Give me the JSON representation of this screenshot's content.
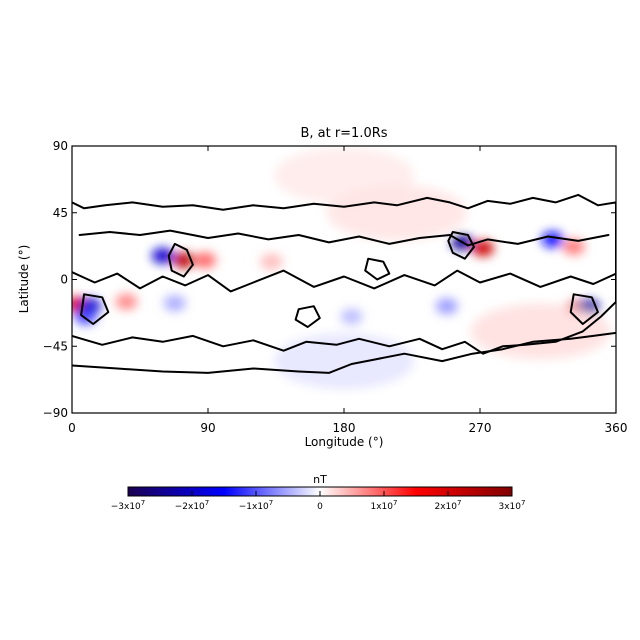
{
  "chart_data": {
    "type": "heatmap",
    "title": "B, at r=1.0Rs",
    "xlabel": "Longitude (°)",
    "ylabel": "Latitude (°)",
    "xlim": [
      0,
      360
    ],
    "ylim": [
      -90,
      90
    ],
    "x_ticks": [
      {
        "value": 0,
        "label": "0"
      },
      {
        "value": 90,
        "label": "90"
      },
      {
        "value": 180,
        "label": "180"
      },
      {
        "value": 270,
        "label": "270"
      },
      {
        "value": 360,
        "label": "360"
      }
    ],
    "y_ticks": [
      {
        "value": 90,
        "label": "90"
      },
      {
        "value": 45,
        "label": "45"
      },
      {
        "value": 0,
        "label": "0"
      },
      {
        "value": -45,
        "label": "−45"
      },
      {
        "value": -90,
        "label": "−90"
      }
    ],
    "colorbar": {
      "label": "nT",
      "range": [
        -30000000,
        30000000
      ],
      "colors": [
        "#1a0050",
        "#0000ff",
        "#ffffff",
        "#ff0000",
        "#800000"
      ],
      "ticks": [
        {
          "value": -30000000,
          "mantissa": "−3x10",
          "exponent": "7"
        },
        {
          "value": -20000000,
          "mantissa": "−2x10",
          "exponent": "7"
        },
        {
          "value": -10000000,
          "mantissa": "−1x10",
          "exponent": "7"
        },
        {
          "value": 0,
          "mantissa": "0",
          "exponent": ""
        },
        {
          "value": 10000000,
          "mantissa": "1x10",
          "exponent": "7"
        },
        {
          "value": 20000000,
          "mantissa": "2x10",
          "exponent": "7"
        },
        {
          "value": 30000000,
          "mantissa": "3x10",
          "exponent": "7"
        }
      ]
    },
    "field_features": [
      {
        "lon": 60,
        "lat": 16,
        "value": -19000000
      },
      {
        "lon": 74,
        "lat": 13,
        "value": 23000000
      },
      {
        "lon": 88,
        "lat": 13,
        "value": 9000000
      },
      {
        "lon": 132,
        "lat": 12,
        "value": 4000000
      },
      {
        "lon": 258,
        "lat": 25,
        "value": -24000000
      },
      {
        "lon": 272,
        "lat": 21,
        "value": 21000000
      },
      {
        "lon": 318,
        "lat": 27,
        "value": -14000000
      },
      {
        "lon": 332,
        "lat": 22,
        "value": 8000000
      },
      {
        "lon": 3,
        "lat": -17,
        "value": 19000000
      },
      {
        "lon": 12,
        "lat": -18,
        "value": -19000000
      },
      {
        "lon": 9,
        "lat": -25,
        "value": -11000000
      },
      {
        "lon": 36,
        "lat": -15,
        "value": 7000000
      },
      {
        "lon": 68,
        "lat": -16,
        "value": -5000000
      },
      {
        "lon": 333,
        "lat": -20,
        "value": 19000000
      },
      {
        "lon": 342,
        "lat": -19,
        "value": -23000000
      },
      {
        "lon": 248,
        "lat": -18,
        "value": -6000000
      },
      {
        "lon": 185,
        "lat": -25,
        "value": -4000000
      },
      {
        "lon": 180,
        "lat": 70,
        "value": 1200000
      },
      {
        "lon": 180,
        "lat": -55,
        "value": -1500000
      },
      {
        "lon": 310,
        "lat": -35,
        "value": 1800000
      },
      {
        "lon": 215,
        "lat": 45,
        "value": 1600000
      }
    ],
    "contours": [
      {
        "name": "zero-contour-outer",
        "level": 0,
        "points": [
          [
            0,
            52
          ],
          [
            8,
            48
          ],
          [
            22,
            50
          ],
          [
            40,
            52
          ],
          [
            60,
            49
          ],
          [
            80,
            50
          ],
          [
            100,
            47
          ],
          [
            120,
            50
          ],
          [
            140,
            48
          ],
          [
            160,
            51
          ],
          [
            180,
            49
          ],
          [
            200,
            52
          ],
          [
            215,
            50
          ],
          [
            235,
            55
          ],
          [
            250,
            52
          ],
          [
            262,
            48
          ],
          [
            275,
            53
          ],
          [
            290,
            51
          ],
          [
            305,
            55
          ],
          [
            320,
            52
          ],
          [
            335,
            57
          ],
          [
            348,
            50
          ],
          [
            360,
            52
          ],
          [
            360,
            -15
          ],
          [
            350,
            -25
          ],
          [
            338,
            -35
          ],
          [
            320,
            -42
          ],
          [
            300,
            -44
          ],
          [
            285,
            -45
          ],
          [
            272,
            -50
          ],
          [
            260,
            -42
          ],
          [
            245,
            -47
          ],
          [
            230,
            -40
          ],
          [
            210,
            -45
          ],
          [
            190,
            -40
          ],
          [
            175,
            -44
          ],
          [
            155,
            -42
          ],
          [
            140,
            -48
          ],
          [
            120,
            -41
          ],
          [
            100,
            -45
          ],
          [
            80,
            -38
          ],
          [
            60,
            -42
          ],
          [
            40,
            -39
          ],
          [
            20,
            -44
          ],
          [
            0,
            -38
          ]
        ]
      },
      {
        "name": "zero-contour-south",
        "level": 0,
        "points": [
          [
            0,
            -58
          ],
          [
            30,
            -60
          ],
          [
            60,
            -62
          ],
          [
            90,
            -63
          ],
          [
            120,
            -60
          ],
          [
            150,
            -62
          ],
          [
            170,
            -63
          ],
          [
            185,
            -57
          ],
          [
            200,
            -54
          ],
          [
            220,
            -50
          ],
          [
            245,
            -55
          ],
          [
            265,
            -50
          ],
          [
            285,
            -47
          ],
          [
            305,
            -42
          ],
          [
            330,
            -40
          ],
          [
            345,
            -38
          ],
          [
            360,
            -36
          ]
        ]
      },
      {
        "name": "zero-contour-inner-north",
        "level": 0,
        "points": [
          [
            5,
            30
          ],
          [
            25,
            32
          ],
          [
            45,
            30
          ],
          [
            65,
            33
          ],
          [
            90,
            28
          ],
          [
            110,
            31
          ],
          [
            130,
            27
          ],
          [
            150,
            30
          ],
          [
            170,
            25
          ],
          [
            190,
            29
          ],
          [
            210,
            24
          ],
          [
            230,
            28
          ],
          [
            250,
            30
          ],
          [
            262,
            23
          ],
          [
            275,
            27
          ],
          [
            295,
            24
          ],
          [
            315,
            29
          ],
          [
            335,
            26
          ],
          [
            355,
            30
          ]
        ]
      },
      {
        "name": "zero-contour-inner-equator",
        "level": 0,
        "points": [
          [
            0,
            5
          ],
          [
            15,
            -2
          ],
          [
            30,
            4
          ],
          [
            45,
            -6
          ],
          [
            60,
            2
          ],
          [
            75,
            -4
          ],
          [
            90,
            3
          ],
          [
            105,
            -8
          ],
          [
            120,
            -2
          ],
          [
            140,
            6
          ],
          [
            160,
            -5
          ],
          [
            180,
            2
          ],
          [
            200,
            -6
          ],
          [
            220,
            3
          ],
          [
            240,
            -4
          ],
          [
            255,
            6
          ],
          [
            270,
            -2
          ],
          [
            290,
            4
          ],
          [
            310,
            -5
          ],
          [
            330,
            2
          ],
          [
            345,
            -3
          ],
          [
            360,
            4
          ]
        ]
      },
      {
        "name": "closed-contour-a",
        "level": 0,
        "closed": true,
        "points": [
          [
            68,
            24
          ],
          [
            76,
            20
          ],
          [
            80,
            10
          ],
          [
            74,
            2
          ],
          [
            66,
            6
          ],
          [
            64,
            16
          ]
        ]
      },
      {
        "name": "closed-contour-b",
        "level": 0,
        "closed": true,
        "points": [
          [
            252,
            32
          ],
          [
            262,
            30
          ],
          [
            266,
            22
          ],
          [
            260,
            14
          ],
          [
            252,
            18
          ],
          [
            249,
            26
          ]
        ]
      },
      {
        "name": "closed-contour-c",
        "level": 0,
        "closed": true,
        "points": [
          [
            8,
            -10
          ],
          [
            20,
            -12
          ],
          [
            24,
            -22
          ],
          [
            14,
            -30
          ],
          [
            6,
            -24
          ]
        ]
      },
      {
        "name": "closed-contour-d",
        "level": 0,
        "closed": true,
        "points": [
          [
            332,
            -10
          ],
          [
            344,
            -12
          ],
          [
            348,
            -22
          ],
          [
            338,
            -30
          ],
          [
            330,
            -22
          ]
        ]
      },
      {
        "name": "closed-contour-e",
        "level": 0,
        "closed": true,
        "points": [
          [
            150,
            -20
          ],
          [
            160,
            -18
          ],
          [
            164,
            -26
          ],
          [
            156,
            -32
          ],
          [
            148,
            -27
          ]
        ]
      },
      {
        "name": "closed-contour-f",
        "level": 0,
        "closed": true,
        "points": [
          [
            196,
            14
          ],
          [
            206,
            12
          ],
          [
            210,
            4
          ],
          [
            202,
            0
          ],
          [
            194,
            6
          ]
        ]
      }
    ]
  }
}
